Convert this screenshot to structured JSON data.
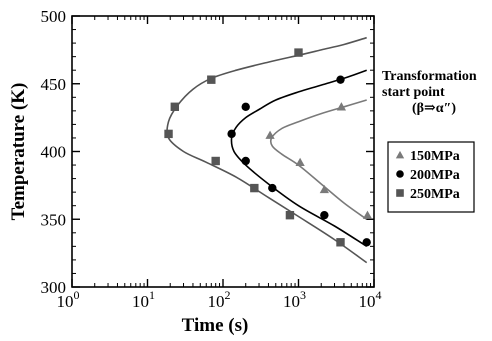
{
  "chart_data": {
    "type": "scatter",
    "xlabel": "Time (s)",
    "ylabel": "Temperature (K)",
    "xscale": "log",
    "xlim": [
      1,
      10000
    ],
    "ylim": [
      300,
      500
    ],
    "x_tick_labels": [
      {
        "base": "10",
        "exp": "0"
      },
      {
        "base": "10",
        "exp": "1"
      },
      {
        "base": "10",
        "exp": "2"
      },
      {
        "base": "10",
        "exp": "3"
      },
      {
        "base": "10",
        "exp": "4"
      }
    ],
    "y_tick_labels": [
      "300",
      "350",
      "400",
      "450",
      "500"
    ],
    "legend": {
      "title_lines": [
        "Transformation",
        "start point",
        "(β⇒α″)"
      ],
      "placement": "right"
    },
    "series": [
      {
        "name": "150MPa",
        "marker": "triangle",
        "color": "#7a7a7a",
        "points": [
          {
            "x": 420,
            "y": 412
          },
          {
            "x": 1050,
            "y": 392
          },
          {
            "x": 2200,
            "y": 372
          },
          {
            "x": 3700,
            "y": 433
          },
          {
            "x": 8200,
            "y": 353
          }
        ],
        "curve": [
          {
            "x": 8000,
            "y": 438
          },
          {
            "x": 4000,
            "y": 433
          },
          {
            "x": 2000,
            "y": 428
          },
          {
            "x": 1000,
            "y": 422
          },
          {
            "x": 600,
            "y": 417
          },
          {
            "x": 440,
            "y": 410
          },
          {
            "x": 450,
            "y": 404
          },
          {
            "x": 600,
            "y": 398
          },
          {
            "x": 1000,
            "y": 390
          },
          {
            "x": 2000,
            "y": 376
          },
          {
            "x": 4000,
            "y": 362
          },
          {
            "x": 8000,
            "y": 350
          }
        ]
      },
      {
        "name": "200MPa",
        "marker": "circle",
        "color": "#000000",
        "points": [
          {
            "x": 200,
            "y": 433
          },
          {
            "x": 3600,
            "y": 453
          },
          {
            "x": 130,
            "y": 413
          },
          {
            "x": 200,
            "y": 393
          },
          {
            "x": 450,
            "y": 373
          },
          {
            "x": 2200,
            "y": 353
          },
          {
            "x": 8000,
            "y": 333
          }
        ],
        "curve": [
          {
            "x": 8000,
            "y": 460
          },
          {
            "x": 4000,
            "y": 454
          },
          {
            "x": 2000,
            "y": 449
          },
          {
            "x": 1000,
            "y": 444
          },
          {
            "x": 500,
            "y": 438
          },
          {
            "x": 300,
            "y": 431
          },
          {
            "x": 200,
            "y": 425
          },
          {
            "x": 150,
            "y": 418
          },
          {
            "x": 130,
            "y": 410
          },
          {
            "x": 140,
            "y": 400
          },
          {
            "x": 200,
            "y": 390
          },
          {
            "x": 400,
            "y": 376
          },
          {
            "x": 1000,
            "y": 360
          },
          {
            "x": 3000,
            "y": 345
          },
          {
            "x": 8000,
            "y": 330
          }
        ]
      },
      {
        "name": "250MPa",
        "marker": "square",
        "color": "#555555",
        "points": [
          {
            "x": 70,
            "y": 453
          },
          {
            "x": 1000,
            "y": 473
          },
          {
            "x": 23,
            "y": 433
          },
          {
            "x": 19,
            "y": 413
          },
          {
            "x": 80,
            "y": 393
          },
          {
            "x": 260,
            "y": 373
          },
          {
            "x": 770,
            "y": 353
          },
          {
            "x": 3600,
            "y": 333
          }
        ],
        "curve": [
          {
            "x": 8000,
            "y": 484
          },
          {
            "x": 4000,
            "y": 479
          },
          {
            "x": 2000,
            "y": 475
          },
          {
            "x": 1000,
            "y": 471
          },
          {
            "x": 400,
            "y": 466
          },
          {
            "x": 150,
            "y": 460
          },
          {
            "x": 70,
            "y": 454
          },
          {
            "x": 40,
            "y": 446
          },
          {
            "x": 25,
            "y": 434
          },
          {
            "x": 19,
            "y": 422
          },
          {
            "x": 19,
            "y": 410
          },
          {
            "x": 30,
            "y": 400
          },
          {
            "x": 60,
            "y": 392
          },
          {
            "x": 150,
            "y": 381
          },
          {
            "x": 400,
            "y": 366
          },
          {
            "x": 1000,
            "y": 352
          },
          {
            "x": 3000,
            "y": 335
          },
          {
            "x": 8000,
            "y": 318
          }
        ]
      }
    ]
  }
}
